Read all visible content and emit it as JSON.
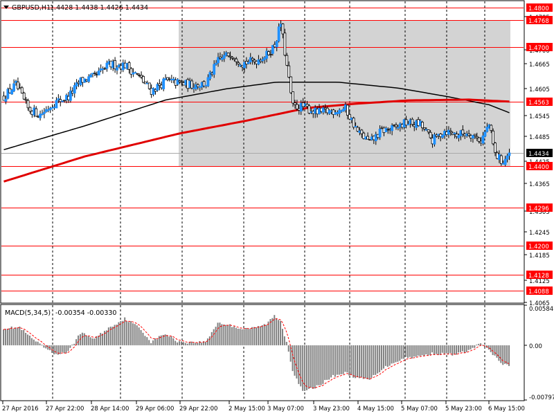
{
  "header": {
    "symbol": "GBPUSD,H1",
    "ohlc": "1.4428 1.4438 1.4426 1.4434"
  },
  "macd_panel": {
    "label": "MACD(5,34,5)",
    "values": "-0.00354 -0.00330"
  },
  "colors": {
    "background": "#ffffff",
    "candle_body": "#1e90ff",
    "candle_wick": "#000000",
    "level_line": "#ff0000",
    "level_tag_bg": "#ff0000",
    "ma_slow": "#e00000",
    "ma_fast": "#000000",
    "zone_fill": "#d3d3d3",
    "macd_hist": "#808080",
    "macd_signal": "#ff0000",
    "price_tag_bg": "#000000"
  },
  "chart_data": [
    {
      "type": "candlestick",
      "title": "GBPUSD,H1",
      "current_price": 1.4434,
      "current_price_label": "1.4434",
      "ylim": [
        1.4058,
        1.4815
      ],
      "price_ticks": [
        "1.4785",
        "1.4700",
        "1.4665",
        "1.4605",
        "1.4545",
        "1.4485",
        "1.4425",
        "1.4365",
        "1.4305",
        "1.4245",
        "1.4185",
        "1.4125",
        "1.4065"
      ],
      "time_ticks": [
        "27 Apr 2016",
        "27 Apr 22:00",
        "28 Apr 14:00",
        "29 Apr 06:00",
        "29 Apr 22:00",
        "2 May 15:00",
        "3 May 07:00",
        "3 May 23:00",
        "4 May 15:00",
        "5 May 07:00",
        "5 May 23:00",
        "6 May 15:00"
      ],
      "levels": [
        {
          "label": "1.4800",
          "value": 1.48
        },
        {
          "label": "1.4768",
          "value": 1.4768
        },
        {
          "label": "1.4700",
          "value": 1.47
        },
        {
          "label": "1.4563",
          "value": 1.4563
        },
        {
          "label": "1.4400",
          "value": 1.44
        },
        {
          "label": "1.4296",
          "value": 1.4296
        },
        {
          "label": "1.4200",
          "value": 1.42
        },
        {
          "label": "1.4128",
          "value": 1.4128
        },
        {
          "label": "1.4088",
          "value": 1.4088
        }
      ],
      "zone": {
        "from_bar": 87,
        "to_bar": 250,
        "low": 1.44,
        "high": 1.4768
      },
      "anchors": [
        [
          0,
          1.4575
        ],
        [
          6,
          1.4605
        ],
        [
          12,
          1.4545
        ],
        [
          18,
          1.453
        ],
        [
          25,
          1.456
        ],
        [
          32,
          1.4575
        ],
        [
          38,
          1.4615
        ],
        [
          45,
          1.4625
        ],
        [
          52,
          1.4655
        ],
        [
          60,
          1.4655
        ],
        [
          67,
          1.4625
        ],
        [
          73,
          1.459
        ],
        [
          80,
          1.4615
        ],
        [
          86,
          1.461
        ],
        [
          92,
          1.4605
        ],
        [
          100,
          1.4608
        ],
        [
          106,
          1.4665
        ],
        [
          112,
          1.4685
        ],
        [
          118,
          1.466
        ],
        [
          124,
          1.4665
        ],
        [
          130,
          1.468
        ],
        [
          134,
          1.4705
        ],
        [
          137,
          1.476
        ],
        [
          140,
          1.465
        ],
        [
          143,
          1.455
        ],
        [
          148,
          1.455
        ],
        [
          155,
          1.4535
        ],
        [
          163,
          1.454
        ],
        [
          169,
          1.4545
        ],
        [
          175,
          1.4487
        ],
        [
          181,
          1.446
        ],
        [
          187,
          1.449
        ],
        [
          193,
          1.4495
        ],
        [
          199,
          1.451
        ],
        [
          206,
          1.4505
        ],
        [
          212,
          1.4465
        ],
        [
          218,
          1.449
        ],
        [
          224,
          1.448
        ],
        [
          230,
          1.4485
        ],
        [
          236,
          1.4465
        ],
        [
          240,
          1.4505
        ],
        [
          243,
          1.443
        ],
        [
          247,
          1.441
        ],
        [
          250,
          1.4434
        ]
      ],
      "series": [
        {
          "name": "",
          "kind": "ma",
          "points": [
            [
              0,
              1.4442
            ],
            [
              40,
              1.4502
            ],
            [
              80,
              1.4567
            ],
            [
              110,
              1.4595
            ],
            [
              135,
              1.4612
            ],
            [
              165,
              1.4612
            ],
            [
              195,
              1.4597
            ],
            [
              220,
              1.4575
            ],
            [
              240,
              1.4555
            ],
            [
              250,
              1.4535
            ]
          ]
        },
        {
          "name": "",
          "kind": "ma",
          "points": [
            [
              0,
              1.4362
            ],
            [
              40,
              1.4425
            ],
            [
              87,
              1.4483
            ],
            [
              120,
              1.4515
            ],
            [
              150,
              1.4547
            ],
            [
              175,
              1.4558
            ],
            [
              200,
              1.4566
            ],
            [
              230,
              1.4568
            ],
            [
              250,
              1.4563
            ]
          ]
        }
      ]
    },
    {
      "type": "bar",
      "title": "MACD(5,34,5)",
      "ylim": [
        -0.00797,
        0.00584
      ],
      "tick_labels": [
        "0.00584",
        "0.00",
        "-0.00797"
      ],
      "anchors": [
        [
          0,
          0.0025
        ],
        [
          8,
          0.0026
        ],
        [
          12,
          0.0015
        ],
        [
          18,
          0.0001
        ],
        [
          25,
          -0.0013
        ],
        [
          32,
          -0.001
        ],
        [
          38,
          0.0018
        ],
        [
          45,
          0.001
        ],
        [
          52,
          0.0025
        ],
        [
          60,
          0.0039
        ],
        [
          67,
          0.0026
        ],
        [
          73,
          0.0005
        ],
        [
          80,
          0.0017
        ],
        [
          86,
          0.0006
        ],
        [
          92,
          0.0004
        ],
        [
          100,
          0.0005
        ],
        [
          106,
          0.0033
        ],
        [
          112,
          0.0029
        ],
        [
          118,
          0.0024
        ],
        [
          124,
          0.0025
        ],
        [
          130,
          0.0031
        ],
        [
          134,
          0.0043
        ],
        [
          137,
          0.0035
        ],
        [
          140,
          0.0005
        ],
        [
          143,
          -0.0036
        ],
        [
          148,
          -0.0068
        ],
        [
          155,
          -0.006
        ],
        [
          163,
          -0.0045
        ],
        [
          169,
          -0.004
        ],
        [
          175,
          -0.0048
        ],
        [
          181,
          -0.005
        ],
        [
          187,
          -0.0035
        ],
        [
          193,
          -0.0025
        ],
        [
          199,
          -0.0018
        ],
        [
          206,
          -0.0016
        ],
        [
          212,
          -0.0012
        ],
        [
          218,
          -0.0013
        ],
        [
          224,
          -0.0013
        ],
        [
          230,
          -0.0008
        ],
        [
          236,
          0.0003
        ],
        [
          240,
          -0.0008
        ],
        [
          243,
          -0.0016
        ],
        [
          247,
          -0.0028
        ],
        [
          250,
          -0.003
        ]
      ],
      "signal_line": true
    }
  ]
}
